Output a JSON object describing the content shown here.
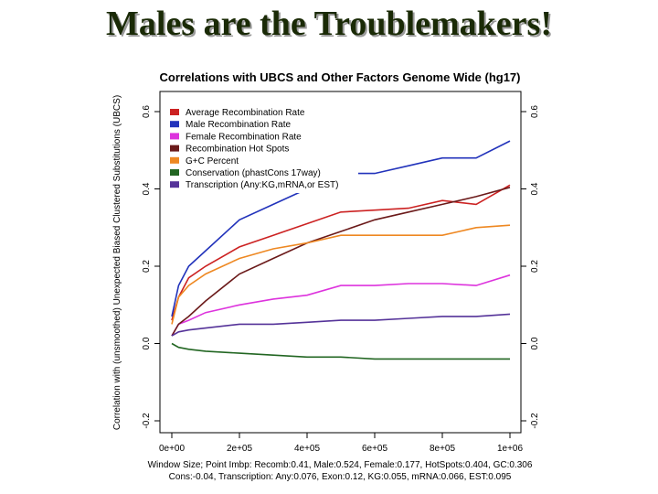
{
  "slide": {
    "title": "Males are the Troublemakers!"
  },
  "chart_data": {
    "type": "line",
    "title": "Correlations with UBCS and Other Factors Genome Wide (hg17)",
    "ylabel": "Correlation with (unsmoothed) Unexpected Biased Clustered Substitutions (UBCS)",
    "xlim": [
      0,
      1000000
    ],
    "ylim": [
      -0.2,
      0.6
    ],
    "x_ticks": [
      0,
      200000,
      400000,
      600000,
      800000,
      1000000
    ],
    "x_tick_labels": [
      "0e+00",
      "2e+05",
      "4e+05",
      "6e+05",
      "8e+05",
      "1e+06"
    ],
    "y_ticks": [
      -0.2,
      0.0,
      0.2,
      0.4,
      0.6
    ],
    "y_tick_labels": [
      "-0.2",
      "0.0",
      "0.2",
      "0.4",
      "0.6"
    ],
    "grid": false,
    "legend_position": "top-left",
    "footer_lines": [
      "Window Size; Point Imbp: Recomb:0.41, Male:0.524, Female:0.177, HotSpots:0.404, GC:0.306",
      "Cons:-0.04, Transcription: Any:0.076, Exon:0.12, KG:0.055, mRNA:0.066, EST:0.095"
    ],
    "series": [
      {
        "name": "Average Recombination Rate",
        "color": "#cc2222",
        "x": [
          0,
          20000,
          50000,
          100000,
          200000,
          300000,
          400000,
          500000,
          600000,
          700000,
          800000,
          900000,
          1000000
        ],
        "y": [
          0.06,
          0.12,
          0.17,
          0.2,
          0.25,
          0.28,
          0.31,
          0.34,
          0.345,
          0.35,
          0.37,
          0.36,
          0.41
        ]
      },
      {
        "name": "Male Recombination Rate",
        "color": "#2233bb",
        "x": [
          0,
          20000,
          50000,
          100000,
          200000,
          300000,
          400000,
          500000,
          600000,
          700000,
          800000,
          900000,
          1000000
        ],
        "y": [
          0.07,
          0.15,
          0.2,
          0.24,
          0.32,
          0.36,
          0.4,
          0.44,
          0.44,
          0.46,
          0.48,
          0.48,
          0.524
        ]
      },
      {
        "name": "Female Recombination Rate",
        "color": "#dd33dd",
        "x": [
          0,
          20000,
          50000,
          100000,
          200000,
          300000,
          400000,
          500000,
          600000,
          700000,
          800000,
          900000,
          1000000
        ],
        "y": [
          0.02,
          0.05,
          0.06,
          0.08,
          0.1,
          0.115,
          0.125,
          0.15,
          0.15,
          0.155,
          0.155,
          0.15,
          0.177
        ]
      },
      {
        "name": "Recombination Hot Spots",
        "color": "#6b1a1a",
        "x": [
          0,
          20000,
          50000,
          100000,
          200000,
          300000,
          400000,
          500000,
          600000,
          700000,
          800000,
          900000,
          1000000
        ],
        "y": [
          0.02,
          0.05,
          0.07,
          0.11,
          0.18,
          0.22,
          0.26,
          0.29,
          0.32,
          0.34,
          0.36,
          0.38,
          0.404
        ]
      },
      {
        "name": "G+C Percent",
        "color": "#ee8822",
        "x": [
          0,
          20000,
          50000,
          100000,
          200000,
          300000,
          400000,
          500000,
          600000,
          700000,
          800000,
          900000,
          1000000
        ],
        "y": [
          0.05,
          0.12,
          0.15,
          0.18,
          0.22,
          0.245,
          0.26,
          0.28,
          0.28,
          0.28,
          0.28,
          0.3,
          0.306
        ]
      },
      {
        "name": "Conservation (phastCons 17way)",
        "color": "#226622",
        "x": [
          0,
          20000,
          50000,
          100000,
          200000,
          300000,
          400000,
          500000,
          600000,
          700000,
          800000,
          900000,
          1000000
        ],
        "y": [
          0.0,
          -0.01,
          -0.015,
          -0.02,
          -0.025,
          -0.03,
          -0.035,
          -0.035,
          -0.04,
          -0.04,
          -0.04,
          -0.04,
          -0.04
        ]
      },
      {
        "name": "Transcription (Any:KG,mRNA,or EST)",
        "color": "#553399",
        "x": [
          0,
          20000,
          50000,
          100000,
          200000,
          300000,
          400000,
          500000,
          600000,
          700000,
          800000,
          900000,
          1000000
        ],
        "y": [
          0.02,
          0.03,
          0.035,
          0.04,
          0.05,
          0.05,
          0.055,
          0.06,
          0.06,
          0.065,
          0.07,
          0.07,
          0.076
        ]
      }
    ]
  }
}
